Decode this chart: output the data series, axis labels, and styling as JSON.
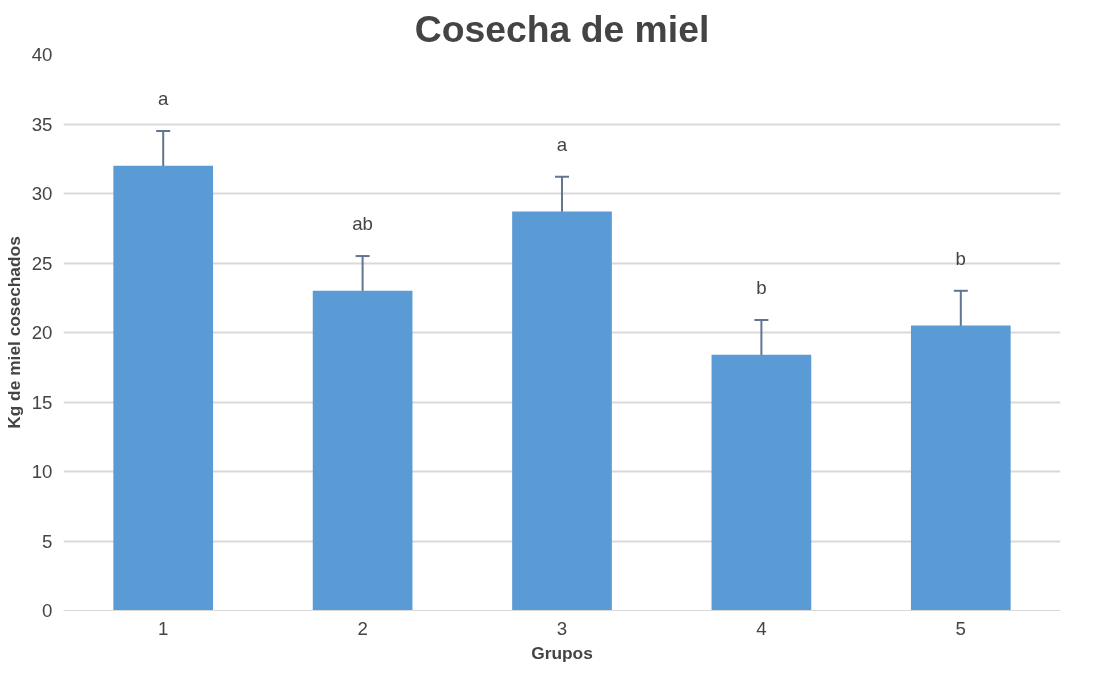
{
  "chart_data": {
    "type": "bar",
    "title": "Cosecha de miel",
    "xlabel": "Grupos",
    "ylabel": "Kg de miel cosechados",
    "categories": [
      "1",
      "2",
      "3",
      "4",
      "5"
    ],
    "values": [
      32,
      23,
      28.7,
      18.4,
      20.5
    ],
    "errors": [
      2.5,
      2.5,
      2.5,
      2.5,
      2.5
    ],
    "color": "#5b9bd5",
    "ylim": [
      0,
      40
    ],
    "yticks": [
      0,
      5,
      10,
      15,
      20,
      25,
      30,
      35,
      40
    ],
    "grid": "y",
    "annotations": [
      "a",
      "ab",
      "a",
      "b",
      "b"
    ]
  }
}
